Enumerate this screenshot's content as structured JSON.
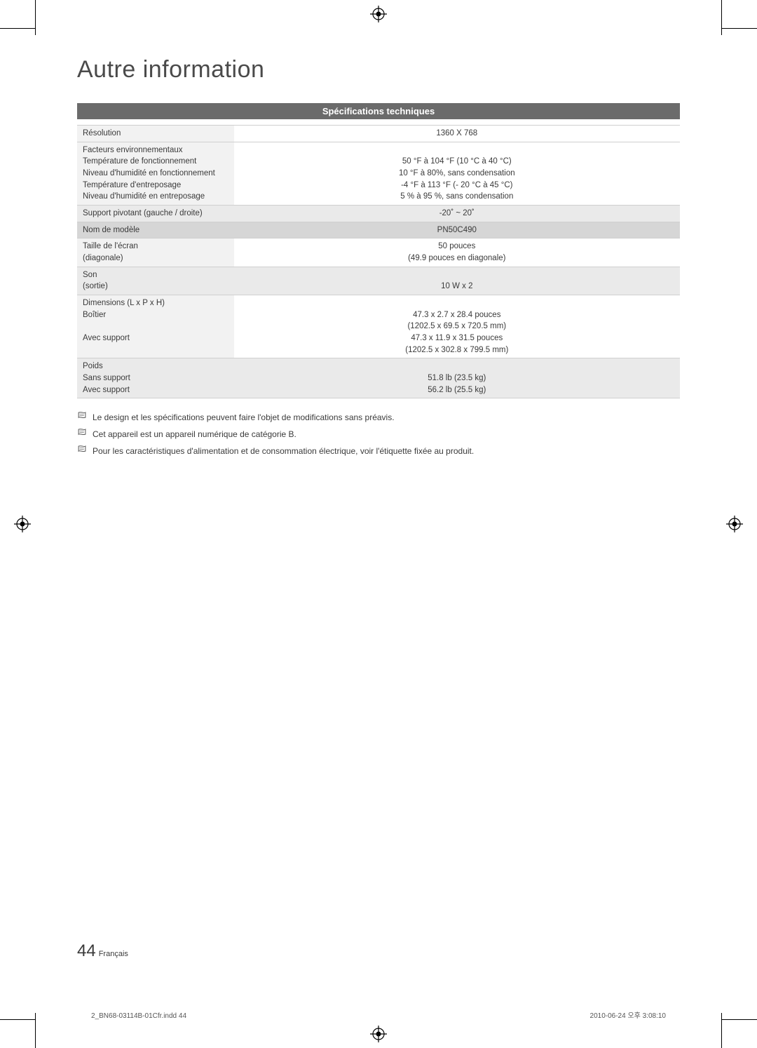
{
  "title": "Autre information",
  "section_header": "Spécifications techniques",
  "rows": [
    {
      "label": "Résolution",
      "value": "1360 X 768",
      "shade": "light"
    },
    {
      "label": "Facteurs environnementaux\nTempérature de fonctionnement\nNiveau d'humidité en fonctionnement\nTempérature d'entreposage\nNiveau d'humidité en entreposage",
      "value": "\n50 °F à 104 °F (10 °C à 40 °C)\n10 °F à 80%, sans condensation\n-4 °F à 113 °F (- 20 °C à 45 °C)\n5 % à 95 %, sans condensation",
      "shade": "light"
    },
    {
      "label": "Support pivotant (gauche / droite)",
      "value": "-20˚ ~ 20˚",
      "shade": "grey"
    },
    {
      "label": "Nom de modèle",
      "value": "PN50C490",
      "shade": "dark"
    },
    {
      "label": "Taille de l'écran\n(diagonale)",
      "value": "50 pouces\n(49.9 pouces en diagonale)",
      "shade": "light"
    },
    {
      "label": "Son\n(sortie)",
      "value": "\n10 W x 2",
      "shade": "grey"
    },
    {
      "label": "Dimensions (L x P x H)\nBoîtier\n\nAvec support",
      "value": "\n47.3 x 2.7 x 28.4 pouces\n(1202.5 x 69.5 x 720.5 mm)\n47.3 x 11.9 x 31.5 pouces\n(1202.5 x 302.8 x 799.5 mm)",
      "shade": "light"
    },
    {
      "label": "Poids\nSans support\nAvec support",
      "value": "\n51.8 lb (23.5 kg)\n56.2 lb (25.5 kg)",
      "shade": "grey"
    }
  ],
  "notes": [
    "Le design et les spécifications peuvent faire l'objet de modifications sans préavis.",
    "Cet appareil est un appareil numérique de catégorie B.",
    "Pour les caractéristiques d'alimentation et de consommation électrique, voir l'étiquette fixée au produit."
  ],
  "page_number": "44",
  "page_lang": "Français",
  "footer_left": "2_BN68-03114B-01Cfr.indd   44",
  "footer_right": "2010-06-24   오후 3:08:10"
}
